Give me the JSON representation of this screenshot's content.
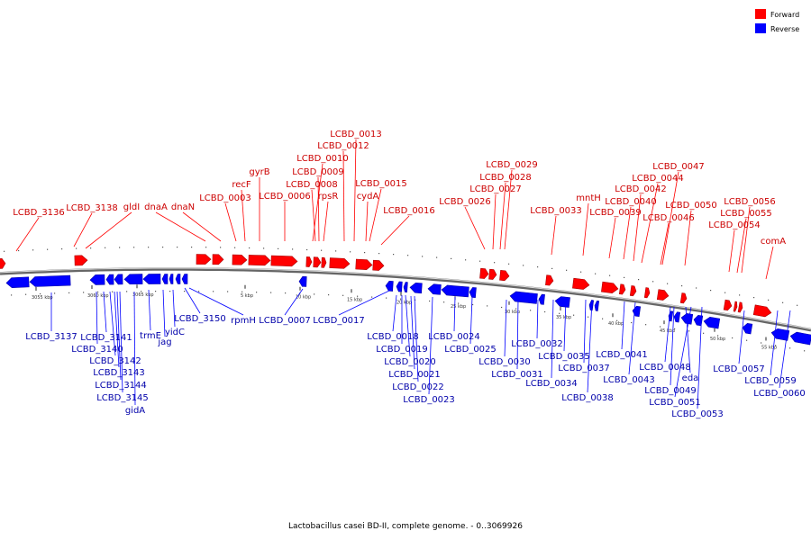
{
  "caption": "Lactobacillus casei BD-II, complete genome. - 0..3069926",
  "legend": [
    {
      "label": "Forward",
      "color": "#ff0000"
    },
    {
      "label": "Reverse",
      "color": "#0000ff"
    }
  ],
  "colors": {
    "forward": "#ff0000",
    "reverse": "#0000ff",
    "backbone": "#666666",
    "forward_text": "#cc0000",
    "reverse_text": "#0000aa"
  },
  "forward_labels": [
    "LCBD_3136",
    "LCBD_3138",
    "gldI",
    "dnaA",
    "dnaN",
    "LCBD_0003",
    "recF",
    "gyrB",
    "LCBD_0006",
    "LCBD_0008",
    "rpsR",
    "LCBD_0009",
    "LCBD_0010",
    "LCBD_0012",
    "LCBD_0013",
    "cydA",
    "LCBD_0015",
    "LCBD_0016",
    "LCBD_0026",
    "LCBD_0027",
    "LCBD_0028",
    "LCBD_0029",
    "LCBD_0033",
    "mntH",
    "LCBD_0039",
    "LCBD_0040",
    "LCBD_0042",
    "LCBD_0044",
    "LCBD_0047",
    "LCBD_0046",
    "LCBD_0050",
    "LCBD_0054",
    "LCBD_0055",
    "LCBD_0056",
    "comA"
  ],
  "reverse_labels": [
    "LCBD_3137",
    "LCBD_3140",
    "LCBD_3141",
    "LCBD_3142",
    "LCBD_3143",
    "LCBD_3144",
    "LCBD_3145",
    "gidA",
    "trmE",
    "jag",
    "yidC",
    "LCBD_3150",
    "rpmH",
    "LCBD_0007",
    "LCBD_0017",
    "LCBD_0018",
    "LCBD_0019",
    "LCBD_0020",
    "LCBD_0021",
    "LCBD_0022",
    "LCBD_0023",
    "LCBD_0024",
    "LCBD_0025",
    "LCBD_0030",
    "LCBD_0031",
    "LCBD_0032",
    "LCBD_0034",
    "LCBD_0035",
    "LCBD_0037",
    "LCBD_0038",
    "LCBD_0041",
    "LCBD_0043",
    "LCBD_0048",
    "LCBD_0049",
    "eda",
    "LCBD_0051",
    "LCBD_0053",
    "LCBD_0057",
    "LCBD_0059",
    "LCBD_0060"
  ],
  "tick_labels": [
    "3055 kbp",
    "3060 kbp",
    "3065 kbp",
    "5 kbp",
    "10 kbp",
    "15 kbp",
    "20 kbp",
    "25 kbp",
    "30 kbp",
    "35 kbp",
    "40 kbp",
    "45 kbp",
    "50 kbp",
    "55 kbp"
  ]
}
